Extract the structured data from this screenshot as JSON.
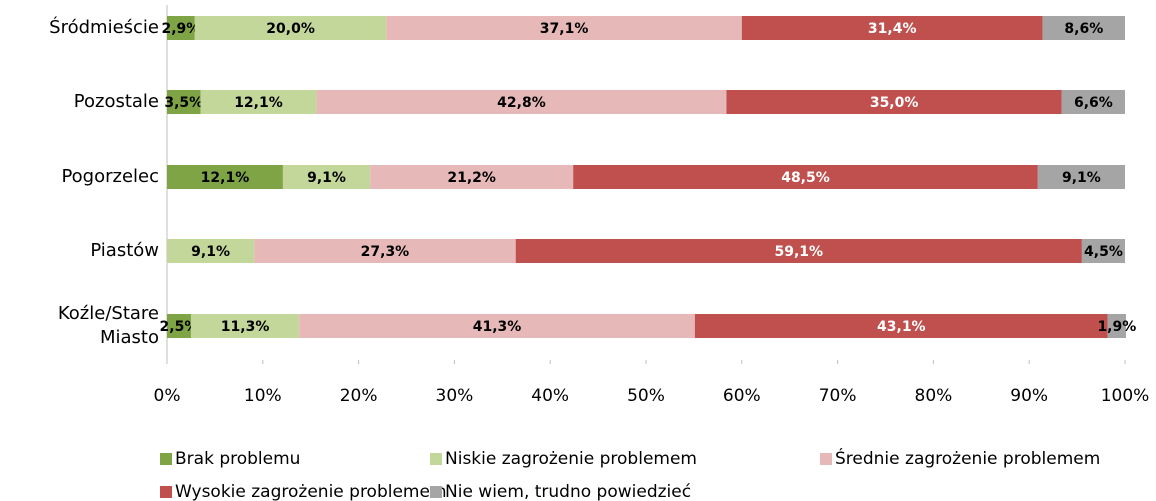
{
  "chart_data": {
    "type": "stacked-bar-horizontal",
    "categories": [
      "Śródmieście",
      "Pozostale",
      "Pogorzelec",
      "Piastów",
      "Koźle/Stare Miasto"
    ],
    "series": [
      {
        "name": "Brak problemu",
        "color": "#7ea445",
        "label_color": "#000000",
        "values": [
          2.9,
          3.5,
          12.1,
          null,
          2.5
        ],
        "value_labels": [
          "2,9%",
          "3,5%",
          "12,1%",
          null,
          "2,5%"
        ]
      },
      {
        "name": "Niskie zagrożenie problemem",
        "color": "#c4d79b",
        "label_color": "#000000",
        "values": [
          20.0,
          12.1,
          9.1,
          9.1,
          11.3
        ],
        "value_labels": [
          "20,0%",
          "12,1%",
          "9,1%",
          "9,1%",
          "11,3%"
        ]
      },
      {
        "name": "Średnie zagrożenie problemem",
        "color": "#e6b9b8",
        "label_color": "#000000",
        "values": [
          37.1,
          42.8,
          21.2,
          27.3,
          41.3
        ],
        "value_labels": [
          "37,1%",
          "42,8%",
          "21,2%",
          "27,3%",
          "41,3%"
        ]
      },
      {
        "name": "Wysokie zagrożenie problemem",
        "color": "#c0504d",
        "label_color": "#ffffff",
        "values": [
          31.4,
          35.0,
          48.5,
          59.1,
          43.1
        ],
        "value_labels": [
          "31,4%",
          "35,0%",
          "48,5%",
          "59,1%",
          "43,1%"
        ]
      },
      {
        "name": "Nie wiem, trudno powiedzieć",
        "color": "#a5a5a5",
        "label_color": "#000000",
        "values": [
          8.6,
          6.6,
          9.1,
          4.5,
          1.9
        ],
        "value_labels": [
          "8,6%",
          "6,6%",
          "9,1%",
          "4,5%",
          "1,9%"
        ]
      }
    ],
    "xlim": [
      0,
      100
    ],
    "xticks": [
      {
        "value": 0,
        "label": "0%"
      },
      {
        "value": 10,
        "label": "10%"
      },
      {
        "value": 20,
        "label": "20%"
      },
      {
        "value": 30,
        "label": "30%"
      },
      {
        "value": 40,
        "label": "40%"
      },
      {
        "value": 50,
        "label": "50%"
      },
      {
        "value": 60,
        "label": "60%"
      },
      {
        "value": 70,
        "label": "70%"
      },
      {
        "value": 80,
        "label": "80%"
      },
      {
        "value": 90,
        "label": "90%"
      },
      {
        "value": 100,
        "label": "100%"
      }
    ],
    "grid": false,
    "legend": "bottom"
  }
}
